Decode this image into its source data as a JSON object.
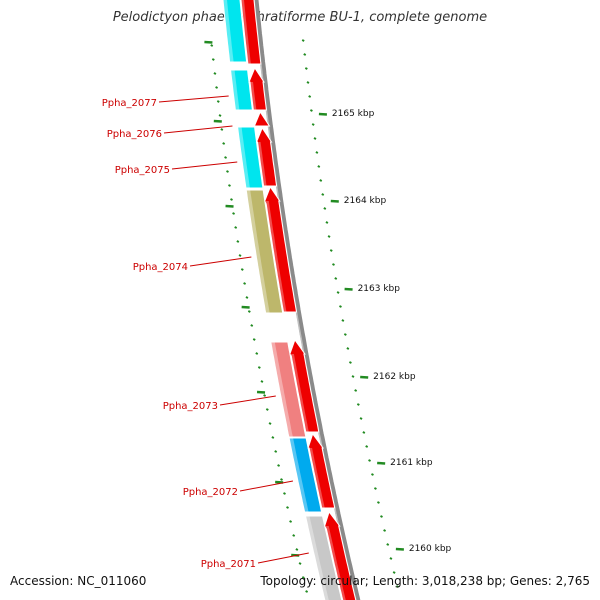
{
  "title": "Pelodictyon phaeoclathratiforme BU-1, complete genome",
  "footer": {
    "accession": "Accession: NC_011060",
    "topology": "Topology: circular; Length: 3,018,238 bp; Genes: 2,765"
  },
  "colors": {
    "backbone": "#8a8a8a",
    "cds": "#ee0000",
    "cyan": "#00e5ee",
    "olive": "#bdb76b",
    "salmon": "#f08080",
    "blue": "#00aaee",
    "grey": "#c8c8c8",
    "label": "#cc0000",
    "tick": "#228b22"
  },
  "kbp_ticks": [
    "2165 kbp",
    "2164 kbp",
    "2163 kbp",
    "2162 kbp",
    "2161 kbp",
    "2160 kbp"
  ],
  "genes": [
    {
      "label": "Ppha_2077"
    },
    {
      "label": "Ppha_2076"
    },
    {
      "label": "Ppha_2075"
    },
    {
      "label": "Ppha_2074"
    },
    {
      "label": "Ppha_2073"
    },
    {
      "label": "Ppha_2072"
    },
    {
      "label": "Ppha_2071"
    }
  ]
}
